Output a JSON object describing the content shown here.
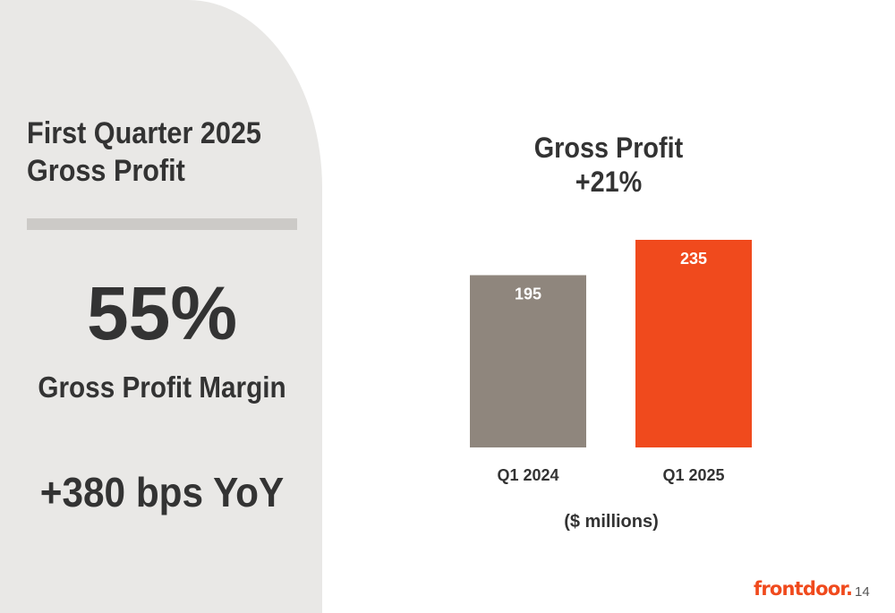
{
  "left_panel": {
    "title_line1": "First Quarter 2025",
    "title_line2": "Gross Profit",
    "metric_value": "55%",
    "metric_label": "Gross Profit Margin",
    "yoy_change": "+380 bps YoY"
  },
  "chart_title": {
    "line1": "Gross Profit",
    "line2": "+21%"
  },
  "units_label": "($ millions)",
  "logo_text": "frontdoor.",
  "page_number": "14",
  "colors": {
    "panel_bg": "#e9e8e6",
    "bar_2024": "#8f867d",
    "bar_2025": "#f04a1d",
    "brand": "#f04a1d"
  },
  "chart_data": {
    "type": "bar",
    "title": "Gross Profit +21%",
    "categories": [
      "Q1 2024",
      "Q1 2025"
    ],
    "values": [
      195,
      235
    ],
    "value_labels": [
      "195",
      "235"
    ],
    "bar_colors": [
      "#8f867d",
      "#f04a1d"
    ],
    "ylabel": "($ millions)",
    "ylim": [
      0,
      235
    ],
    "grid": false,
    "legend": "none"
  }
}
